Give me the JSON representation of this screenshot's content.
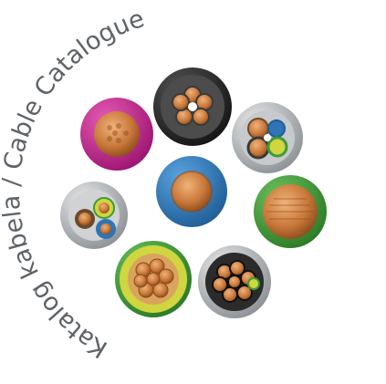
{
  "logo": {
    "ring_text": "Katalog kabela / Cable Catalogue",
    "colors": {
      "text": "#5f6368",
      "copper": "#c9793a",
      "copper_dark": "#8a4a1c",
      "magenta": "#c61f8f",
      "blue": "#2f75b5",
      "green": "#3f9b37",
      "yellow_green": "#cfd640",
      "gray": "#9ea2a6",
      "black": "#222222"
    },
    "cables": [
      {
        "name": "top-multicore",
        "outer": "#2b2b2b",
        "fill": "#4c4c4c",
        "core": "#c9793a"
      },
      {
        "name": "magenta-bundle",
        "outer": "#c61f8f",
        "fill": "#c9793a"
      },
      {
        "name": "gray-4core",
        "outer": "#b9bcc0",
        "fill": "#d4d6d8"
      },
      {
        "name": "blue-single",
        "outer": "#2f75b5",
        "fill": "#c9793a"
      },
      {
        "name": "green-bundle",
        "outer": "#3f9b37",
        "fill": "#c9793a"
      },
      {
        "name": "gray-3core",
        "outer": "#b9bcc0",
        "fill": "#d4d6d8"
      },
      {
        "name": "yellowgreen-bundle",
        "outer": "#7bb043",
        "fill": "#c9793a"
      },
      {
        "name": "black-6core",
        "outer": "#b9bcc0",
        "fill": "#2b2b2b"
      }
    ]
  }
}
